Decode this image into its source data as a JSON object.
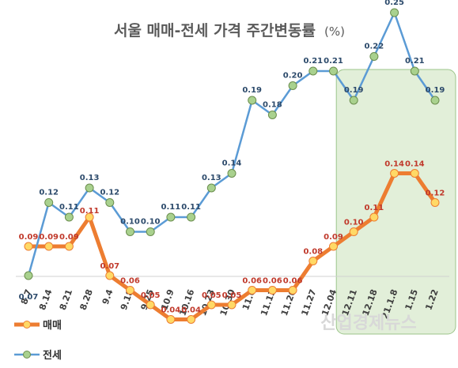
{
  "chart_data": {
    "type": "line",
    "title": "서울 매매-전세 가격 주간변동률",
    "title_unit": "(%)",
    "categories": [
      "8.7",
      "8.14",
      "8.21",
      "8.28",
      "9.4",
      "9.18",
      "9.25",
      "10.9",
      "10.16",
      "10.23",
      "10.30",
      "11.6",
      "11.13",
      "11.20",
      "11.27",
      "12.04",
      "12.11",
      "12.18",
      "21.1.8",
      "1.15",
      "1.22"
    ],
    "series": [
      {
        "name": "매매",
        "color": "#ed7d31",
        "marker": "#ffd966",
        "values": [
          0.09,
          0.09,
          0.09,
          0.11,
          0.07,
          0.06,
          0.05,
          0.04,
          0.04,
          0.05,
          0.05,
          0.06,
          0.06,
          0.06,
          0.08,
          0.09,
          0.1,
          0.11,
          0.14,
          0.14,
          0.12
        ]
      },
      {
        "name": "전세",
        "color": "#5b9bd5",
        "marker": "#a9d18e",
        "values": [
          0.07,
          0.12,
          0.11,
          0.13,
          0.12,
          0.1,
          0.1,
          0.11,
          0.11,
          0.13,
          0.14,
          0.19,
          0.18,
          0.2,
          0.21,
          0.21,
          0.19,
          0.22,
          0.25,
          0.21,
          0.19
        ]
      }
    ],
    "highlight_categories": [
      "12.11",
      "12.18",
      "21.1.8",
      "1.15",
      "1.22"
    ],
    "highlight_color": "#e2efd9",
    "legend": "bottom-left",
    "grid": false
  },
  "watermark": "산업경제뉴스"
}
